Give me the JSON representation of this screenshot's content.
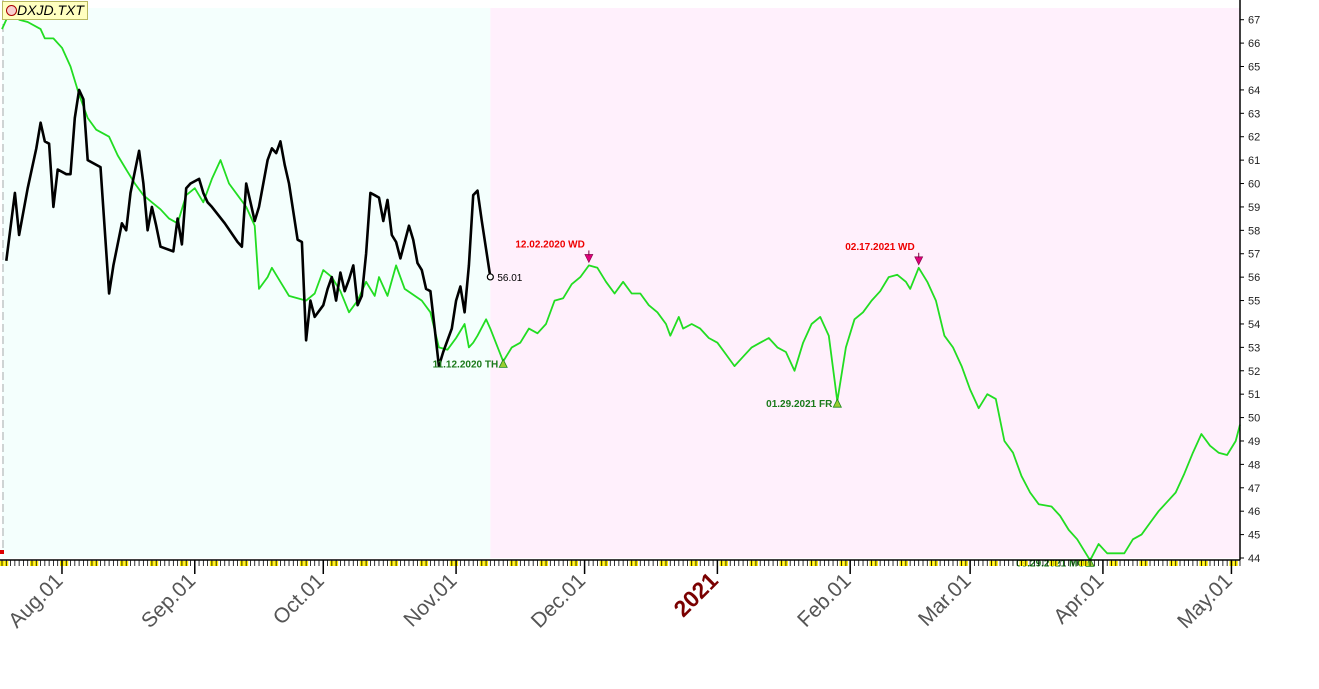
{
  "title": "DXJD.TXT",
  "colors": {
    "history_bg": "#f4fffd",
    "forecast_bg": "#fff0fc",
    "price_line": "#000000",
    "projection_line": "#22dd22",
    "top_marker": "#e0007a",
    "bottom_marker": "#1a8a1a",
    "top_text": "#ee0000",
    "bottom_text": "#1a7a1a",
    "year_label": "#7a0000"
  },
  "chart_data": {
    "type": "line",
    "x_unit": "date",
    "xlim": [
      "2020-07-18",
      "2021-05-03"
    ],
    "ylim": [
      44,
      67.5
    ],
    "y_ticks": [
      44,
      45,
      46,
      47,
      48,
      49,
      50,
      51,
      52,
      53,
      54,
      55,
      56,
      57,
      58,
      59,
      60,
      61,
      62,
      63,
      64,
      65,
      66,
      67
    ],
    "x_tick_labels": [
      {
        "date": "2020-08-01",
        "label": "Aug.01"
      },
      {
        "date": "2020-09-01",
        "label": "Sep.01"
      },
      {
        "date": "2020-10-01",
        "label": "Oct.01"
      },
      {
        "date": "2020-11-01",
        "label": "Nov.01"
      },
      {
        "date": "2020-12-01",
        "label": "Dec.01"
      },
      {
        "date": "2021-01-01",
        "label": "2021",
        "year": true
      },
      {
        "date": "2021-02-01",
        "label": "Feb.01"
      },
      {
        "date": "2021-03-01",
        "label": "Mar.01"
      },
      {
        "date": "2021-04-01",
        "label": "Apr.01"
      },
      {
        "date": "2021-05-01",
        "label": "May.01"
      }
    ],
    "history_end": "2020-11-09",
    "last_value": {
      "date": "2020-11-09",
      "value": 56.01,
      "label": "56.01"
    },
    "series": [
      {
        "key": "price",
        "points": [
          [
            "2020-07-19",
            56.7
          ],
          [
            "2020-07-21",
            59.6
          ],
          [
            "2020-07-22",
            57.8
          ],
          [
            "2020-07-24",
            59.8
          ],
          [
            "2020-07-26",
            61.5
          ],
          [
            "2020-07-27",
            62.6
          ],
          [
            "2020-07-28",
            61.8
          ],
          [
            "2020-07-29",
            61.7
          ],
          [
            "2020-07-30",
            59.0
          ],
          [
            "2020-07-31",
            60.6
          ],
          [
            "2020-08-02",
            60.4
          ],
          [
            "2020-08-03",
            60.4
          ],
          [
            "2020-08-04",
            62.8
          ],
          [
            "2020-08-05",
            64.0
          ],
          [
            "2020-08-06",
            63.6
          ],
          [
            "2020-08-07",
            61.0
          ],
          [
            "2020-08-08",
            60.9
          ],
          [
            "2020-08-10",
            60.7
          ],
          [
            "2020-08-11",
            58.0
          ],
          [
            "2020-08-12",
            55.3
          ],
          [
            "2020-08-13",
            56.5
          ],
          [
            "2020-08-15",
            58.3
          ],
          [
            "2020-08-16",
            58.0
          ],
          [
            "2020-08-17",
            59.6
          ],
          [
            "2020-08-18",
            60.5
          ],
          [
            "2020-08-19",
            61.4
          ],
          [
            "2020-08-20",
            60.0
          ],
          [
            "2020-08-21",
            58.0
          ],
          [
            "2020-08-22",
            59.0
          ],
          [
            "2020-08-23",
            58.2
          ],
          [
            "2020-08-24",
            57.3
          ],
          [
            "2020-08-27",
            57.1
          ],
          [
            "2020-08-28",
            58.5
          ],
          [
            "2020-08-29",
            57.4
          ],
          [
            "2020-08-30",
            59.8
          ],
          [
            "2020-08-31",
            60.0
          ],
          [
            "2020-09-02",
            60.2
          ],
          [
            "2020-09-03",
            59.6
          ],
          [
            "2020-09-04",
            59.2
          ],
          [
            "2020-09-05",
            59.0
          ],
          [
            "2020-09-08",
            58.3
          ],
          [
            "2020-09-11",
            57.5
          ],
          [
            "2020-09-12",
            57.3
          ],
          [
            "2020-09-13",
            60.0
          ],
          [
            "2020-09-14",
            59.2
          ],
          [
            "2020-09-15",
            58.4
          ],
          [
            "2020-09-16",
            59.0
          ],
          [
            "2020-09-18",
            61.0
          ],
          [
            "2020-09-19",
            61.5
          ],
          [
            "2020-09-20",
            61.3
          ],
          [
            "2020-09-21",
            61.8
          ],
          [
            "2020-09-22",
            60.8
          ],
          [
            "2020-09-23",
            60.0
          ],
          [
            "2020-09-24",
            58.8
          ],
          [
            "2020-09-25",
            57.6
          ],
          [
            "2020-09-26",
            57.5
          ],
          [
            "2020-09-27",
            53.3
          ],
          [
            "2020-09-28",
            55.0
          ],
          [
            "2020-09-29",
            54.3
          ],
          [
            "2020-10-01",
            54.8
          ],
          [
            "2020-10-02",
            55.5
          ],
          [
            "2020-10-03",
            56.0
          ],
          [
            "2020-10-04",
            55.0
          ],
          [
            "2020-10-05",
            56.2
          ],
          [
            "2020-10-06",
            55.4
          ],
          [
            "2020-10-07",
            55.9
          ],
          [
            "2020-10-08",
            56.5
          ],
          [
            "2020-10-09",
            54.8
          ],
          [
            "2020-10-10",
            55.2
          ],
          [
            "2020-10-11",
            57.0
          ],
          [
            "2020-10-12",
            59.6
          ],
          [
            "2020-10-13",
            59.5
          ],
          [
            "2020-10-14",
            59.4
          ],
          [
            "2020-10-15",
            58.4
          ],
          [
            "2020-10-16",
            59.3
          ],
          [
            "2020-10-17",
            57.8
          ],
          [
            "2020-10-18",
            57.5
          ],
          [
            "2020-10-19",
            56.8
          ],
          [
            "2020-10-20",
            57.5
          ],
          [
            "2020-10-21",
            58.2
          ],
          [
            "2020-10-22",
            57.6
          ],
          [
            "2020-10-23",
            56.6
          ],
          [
            "2020-10-24",
            56.3
          ],
          [
            "2020-10-25",
            55.5
          ],
          [
            "2020-10-26",
            55.4
          ],
          [
            "2020-10-27",
            53.8
          ],
          [
            "2020-10-28",
            52.2
          ],
          [
            "2020-10-29",
            52.8
          ],
          [
            "2020-10-31",
            53.8
          ],
          [
            "2020-11-01",
            55.0
          ],
          [
            "2020-11-02",
            55.6
          ],
          [
            "2020-11-03",
            54.5
          ],
          [
            "2020-11-04",
            56.5
          ],
          [
            "2020-11-05",
            59.5
          ],
          [
            "2020-11-06",
            59.7
          ],
          [
            "2020-11-07",
            58.4
          ],
          [
            "2020-11-09",
            56.01
          ]
        ]
      },
      {
        "key": "projection",
        "points": [
          [
            "2020-07-18",
            66.6
          ],
          [
            "2020-07-20",
            67.4
          ],
          [
            "2020-07-22",
            67.0
          ],
          [
            "2020-07-24",
            66.9
          ],
          [
            "2020-07-27",
            66.6
          ],
          [
            "2020-07-28",
            66.2
          ],
          [
            "2020-07-30",
            66.2
          ],
          [
            "2020-08-01",
            65.8
          ],
          [
            "2020-08-03",
            65.0
          ],
          [
            "2020-08-05",
            63.8
          ],
          [
            "2020-08-07",
            62.8
          ],
          [
            "2020-08-09",
            62.3
          ],
          [
            "2020-08-12",
            62.0
          ],
          [
            "2020-08-14",
            61.2
          ],
          [
            "2020-08-16",
            60.6
          ],
          [
            "2020-08-18",
            60.0
          ],
          [
            "2020-08-20",
            59.5
          ],
          [
            "2020-08-22",
            59.2
          ],
          [
            "2020-08-24",
            58.9
          ],
          [
            "2020-08-26",
            58.5
          ],
          [
            "2020-08-28",
            58.3
          ],
          [
            "2020-08-30",
            59.5
          ],
          [
            "2020-09-01",
            59.8
          ],
          [
            "2020-09-03",
            59.2
          ],
          [
            "2020-09-05",
            60.2
          ],
          [
            "2020-09-07",
            61.0
          ],
          [
            "2020-09-09",
            60.0
          ],
          [
            "2020-09-11",
            59.5
          ],
          [
            "2020-09-13",
            59.0
          ],
          [
            "2020-09-15",
            58.2
          ],
          [
            "2020-09-16",
            55.5
          ],
          [
            "2020-09-18",
            56.0
          ],
          [
            "2020-09-19",
            56.4
          ],
          [
            "2020-09-21",
            55.8
          ],
          [
            "2020-09-23",
            55.2
          ],
          [
            "2020-09-27",
            55.0
          ],
          [
            "2020-09-29",
            55.3
          ],
          [
            "2020-10-01",
            56.3
          ],
          [
            "2020-10-03",
            56.0
          ],
          [
            "2020-10-05",
            55.4
          ],
          [
            "2020-10-07",
            54.5
          ],
          [
            "2020-10-09",
            55.0
          ],
          [
            "2020-10-11",
            55.8
          ],
          [
            "2020-10-13",
            55.2
          ],
          [
            "2020-10-14",
            56.0
          ],
          [
            "2020-10-16",
            55.2
          ],
          [
            "2020-10-18",
            56.5
          ],
          [
            "2020-10-20",
            55.5
          ],
          [
            "2020-10-24",
            55.0
          ],
          [
            "2020-10-26",
            54.5
          ],
          [
            "2020-10-28",
            53.0
          ],
          [
            "2020-10-30",
            52.9
          ],
          [
            "2020-11-01",
            53.4
          ],
          [
            "2020-11-03",
            54.0
          ],
          [
            "2020-11-04",
            53.0
          ],
          [
            "2020-11-05",
            53.2
          ],
          [
            "2020-11-06",
            53.5
          ],
          [
            "2020-11-08",
            54.2
          ],
          [
            "2020-11-09",
            53.8
          ],
          [
            "2020-11-12",
            52.4
          ],
          [
            "2020-11-14",
            53.0
          ],
          [
            "2020-11-16",
            53.2
          ],
          [
            "2020-11-18",
            53.8
          ],
          [
            "2020-11-20",
            53.6
          ],
          [
            "2020-11-22",
            54.0
          ],
          [
            "2020-11-24",
            55.0
          ],
          [
            "2020-11-26",
            55.1
          ],
          [
            "2020-11-28",
            55.7
          ],
          [
            "2020-11-30",
            56.0
          ],
          [
            "2020-12-02",
            56.5
          ],
          [
            "2020-12-04",
            56.4
          ],
          [
            "2020-12-06",
            55.8
          ],
          [
            "2020-12-08",
            55.3
          ],
          [
            "2020-12-10",
            55.8
          ],
          [
            "2020-12-12",
            55.3
          ],
          [
            "2020-12-14",
            55.3
          ],
          [
            "2020-12-16",
            54.8
          ],
          [
            "2020-12-18",
            54.5
          ],
          [
            "2020-12-20",
            54.0
          ],
          [
            "2020-12-21",
            53.5
          ],
          [
            "2020-12-23",
            54.3
          ],
          [
            "2020-12-24",
            53.8
          ],
          [
            "2020-12-26",
            54.0
          ],
          [
            "2020-12-28",
            53.8
          ],
          [
            "2020-12-30",
            53.4
          ],
          [
            "2021-01-01",
            53.2
          ],
          [
            "2021-01-03",
            52.7
          ],
          [
            "2021-01-05",
            52.2
          ],
          [
            "2021-01-07",
            52.6
          ],
          [
            "2021-01-09",
            53.0
          ],
          [
            "2021-01-11",
            53.2
          ],
          [
            "2021-01-13",
            53.4
          ],
          [
            "2021-01-15",
            53.0
          ],
          [
            "2021-01-17",
            52.8
          ],
          [
            "2021-01-19",
            52.0
          ],
          [
            "2021-01-21",
            53.2
          ],
          [
            "2021-01-23",
            54.0
          ],
          [
            "2021-01-25",
            54.3
          ],
          [
            "2021-01-27",
            53.5
          ],
          [
            "2021-01-29",
            50.7
          ],
          [
            "2021-01-31",
            53.0
          ],
          [
            "2021-02-02",
            54.2
          ],
          [
            "2021-02-04",
            54.5
          ],
          [
            "2021-02-06",
            55.0
          ],
          [
            "2021-02-08",
            55.4
          ],
          [
            "2021-02-10",
            56.0
          ],
          [
            "2021-02-12",
            56.1
          ],
          [
            "2021-02-14",
            55.8
          ],
          [
            "2021-02-15",
            55.5
          ],
          [
            "2021-02-17",
            56.4
          ],
          [
            "2021-02-19",
            55.8
          ],
          [
            "2021-02-21",
            55.0
          ],
          [
            "2021-02-23",
            53.5
          ],
          [
            "2021-02-25",
            53.0
          ],
          [
            "2021-02-27",
            52.2
          ],
          [
            "2021-03-01",
            51.2
          ],
          [
            "2021-03-03",
            50.4
          ],
          [
            "2021-03-05",
            51.0
          ],
          [
            "2021-03-07",
            50.8
          ],
          [
            "2021-03-09",
            49.0
          ],
          [
            "2021-03-11",
            48.5
          ],
          [
            "2021-03-13",
            47.5
          ],
          [
            "2021-03-15",
            46.8
          ],
          [
            "2021-03-17",
            46.3
          ],
          [
            "2021-03-20",
            46.2
          ],
          [
            "2021-03-22",
            45.8
          ],
          [
            "2021-03-24",
            45.2
          ],
          [
            "2021-03-26",
            44.8
          ],
          [
            "2021-03-29",
            43.9
          ],
          [
            "2021-03-31",
            44.6
          ],
          [
            "2021-04-02",
            44.2
          ],
          [
            "2021-04-06",
            44.2
          ],
          [
            "2021-04-08",
            44.8
          ],
          [
            "2021-04-10",
            45.0
          ],
          [
            "2021-04-12",
            45.5
          ],
          [
            "2021-04-14",
            46.0
          ],
          [
            "2021-04-16",
            46.4
          ],
          [
            "2021-04-18",
            46.8
          ],
          [
            "2021-04-20",
            47.6
          ],
          [
            "2021-04-22",
            48.5
          ],
          [
            "2021-04-24",
            49.3
          ],
          [
            "2021-04-26",
            48.8
          ],
          [
            "2021-04-28",
            48.5
          ],
          [
            "2021-04-30",
            48.4
          ],
          [
            "2021-05-02",
            49.0
          ],
          [
            "2021-05-03",
            49.7
          ]
        ]
      }
    ],
    "annotations": [
      {
        "label": "12.02.2020 WD",
        "date": "2020-12-02",
        "value": 56.5,
        "kind": "top"
      },
      {
        "label": "02.17.2021 WD",
        "date": "2021-02-17",
        "value": 56.4,
        "kind": "top"
      },
      {
        "label": "11.12.2020 TH",
        "date": "2020-11-12",
        "value": 52.4,
        "kind": "bottom"
      },
      {
        "label": "01.29.2021 FR",
        "date": "2021-01-29",
        "value": 50.7,
        "kind": "bottom"
      },
      {
        "label": "03.29.2021 MO",
        "date": "2021-03-29",
        "value": 43.9,
        "kind": "bottom"
      }
    ]
  }
}
